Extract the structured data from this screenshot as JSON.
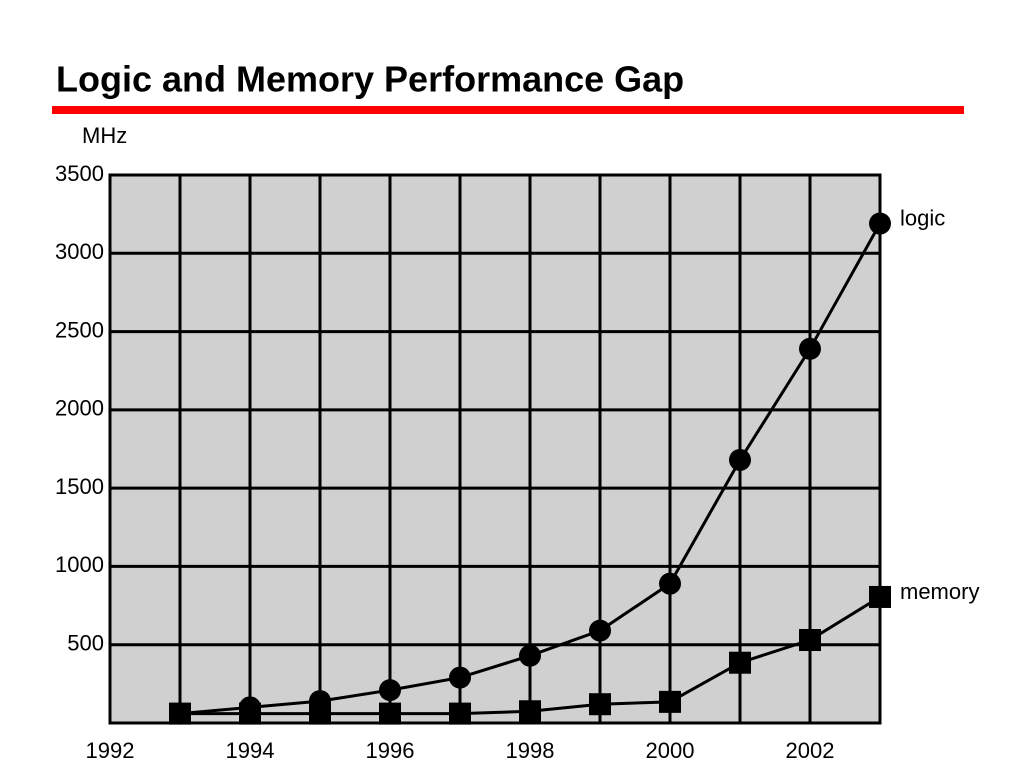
{
  "chart_data": {
    "type": "line",
    "title": "Logic and Memory Performance Gap",
    "ylabel": "MHz",
    "x": [
      1993,
      1994,
      1995,
      1996,
      1997,
      1998,
      1999,
      2000,
      2001,
      2002,
      2003
    ],
    "series": [
      {
        "name": "logic",
        "color": "#000000",
        "marker": "circle",
        "values": [
          60,
          100,
          140,
          210,
          290,
          430,
          590,
          890,
          1680,
          2390,
          3190
        ]
      },
      {
        "name": "memory",
        "color": "#000000",
        "marker": "square",
        "values": [
          60,
          60,
          60,
          60,
          60,
          75,
          120,
          135,
          385,
          530,
          805
        ]
      }
    ],
    "xlim": [
      1992,
      2003
    ],
    "xticks": [
      1992,
      1994,
      1996,
      1998,
      2000,
      2002
    ],
    "x_minor_ticks": [
      1993,
      1995,
      1997,
      1999,
      2001,
      2003
    ],
    "ylim": [
      0,
      3500
    ],
    "yticks": [
      500,
      1000,
      1500,
      2000,
      2500,
      3000,
      3500
    ],
    "grid": true,
    "plot_background": "#d0d0d0",
    "title_rule_color": "#ff0000"
  }
}
